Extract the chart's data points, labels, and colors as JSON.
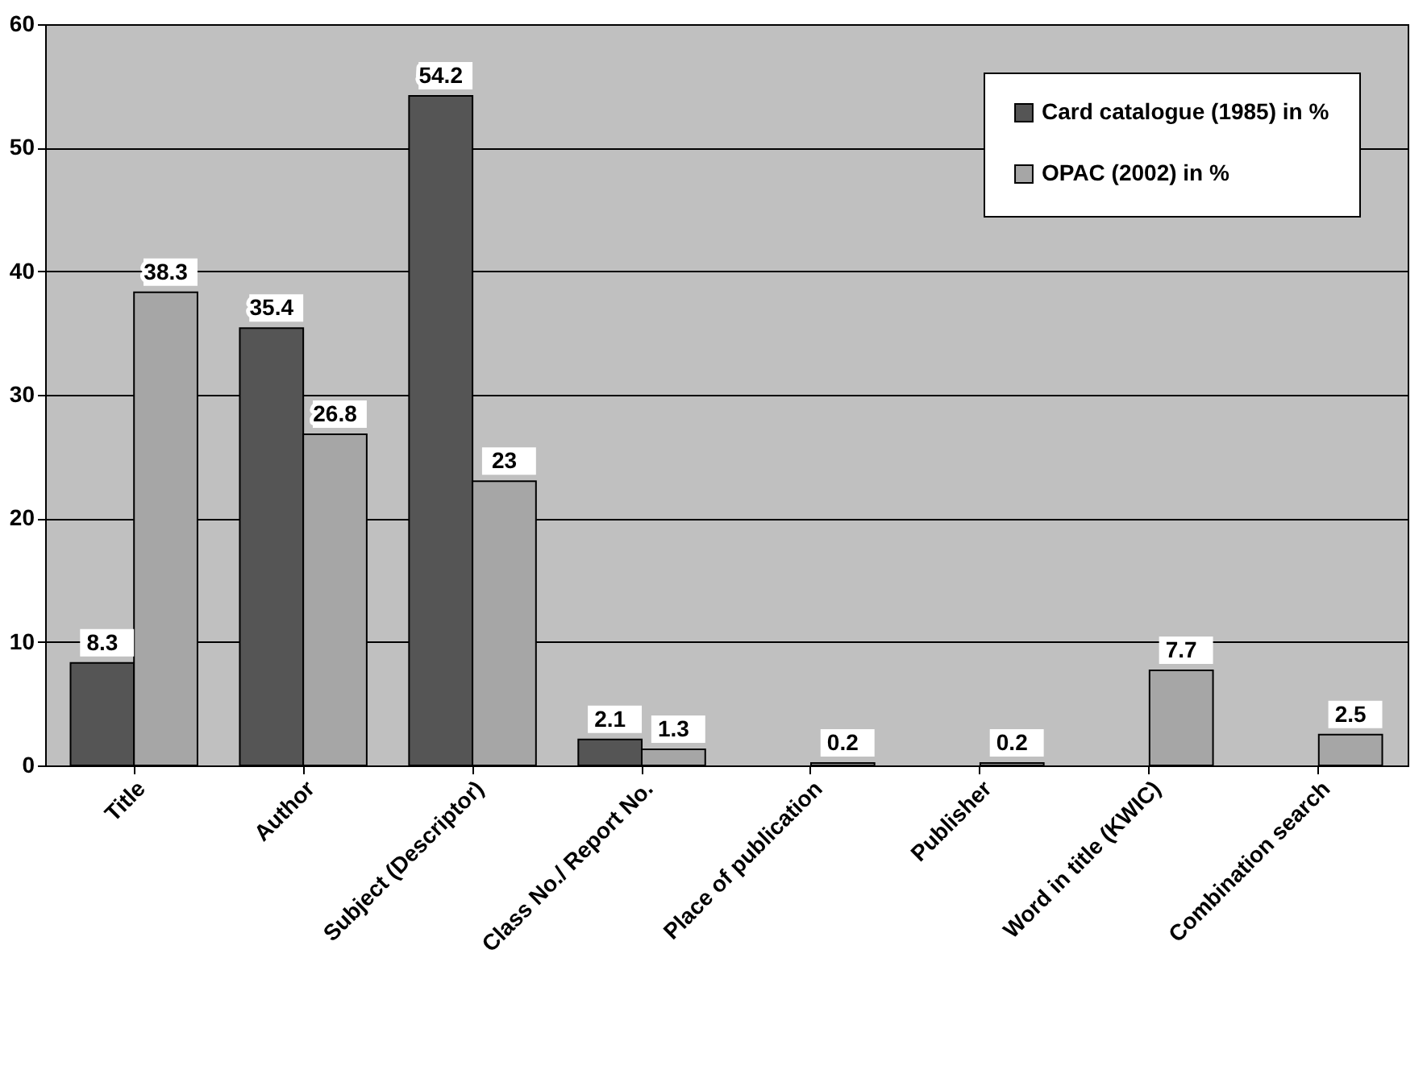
{
  "chart_data": {
    "type": "bar",
    "categories": [
      "Title",
      "Author",
      "Subject (Descriptor)",
      "Class No./ Report No.",
      "Place of publication",
      "Publisher",
      "Word in title (KWIC)",
      "Combination search"
    ],
    "series": [
      {
        "name": "Card catalogue (1985) in %",
        "color": "#555555",
        "values": [
          8.3,
          35.4,
          54.2,
          2.1,
          null,
          null,
          null,
          null
        ]
      },
      {
        "name": "OPAC (2002) in %",
        "color": "#a6a6a6",
        "values": [
          38.3,
          26.8,
          23,
          1.3,
          0.2,
          0.2,
          7.7,
          2.5
        ]
      }
    ],
    "ylim": [
      0,
      60
    ],
    "yticks": [
      0,
      10,
      20,
      30,
      40,
      50,
      60
    ],
    "grid": "y",
    "legend": "top right",
    "data_labels": true
  }
}
